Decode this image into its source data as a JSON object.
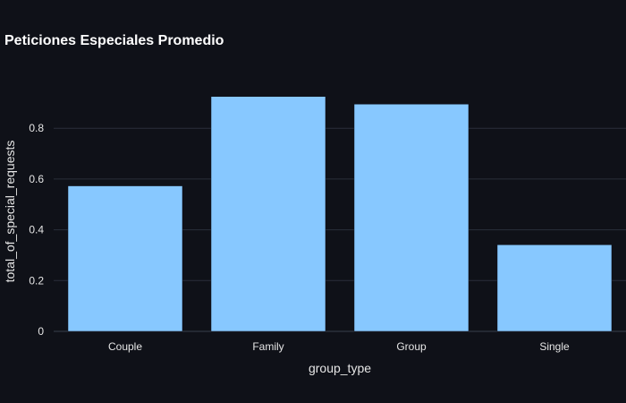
{
  "chart_data": {
    "type": "bar",
    "title": "Peticiones Especiales Promedio",
    "xlabel": "group_type",
    "ylabel": "total_of_special_requests",
    "categories": [
      "Couple",
      "Family",
      "Group",
      "Single"
    ],
    "values": [
      0.573,
      0.925,
      0.895,
      0.341
    ],
    "ylim": [
      0,
      0.97
    ],
    "yticks": [
      0,
      0.2,
      0.4,
      0.6,
      0.8
    ],
    "ytick_labels": [
      "0",
      "0.2",
      "0.4",
      "0.6",
      "0.8"
    ],
    "grid": true,
    "bar_color": "#87c8ff",
    "background_color": "#0f1118",
    "grid_color": "#2a2f3a"
  }
}
